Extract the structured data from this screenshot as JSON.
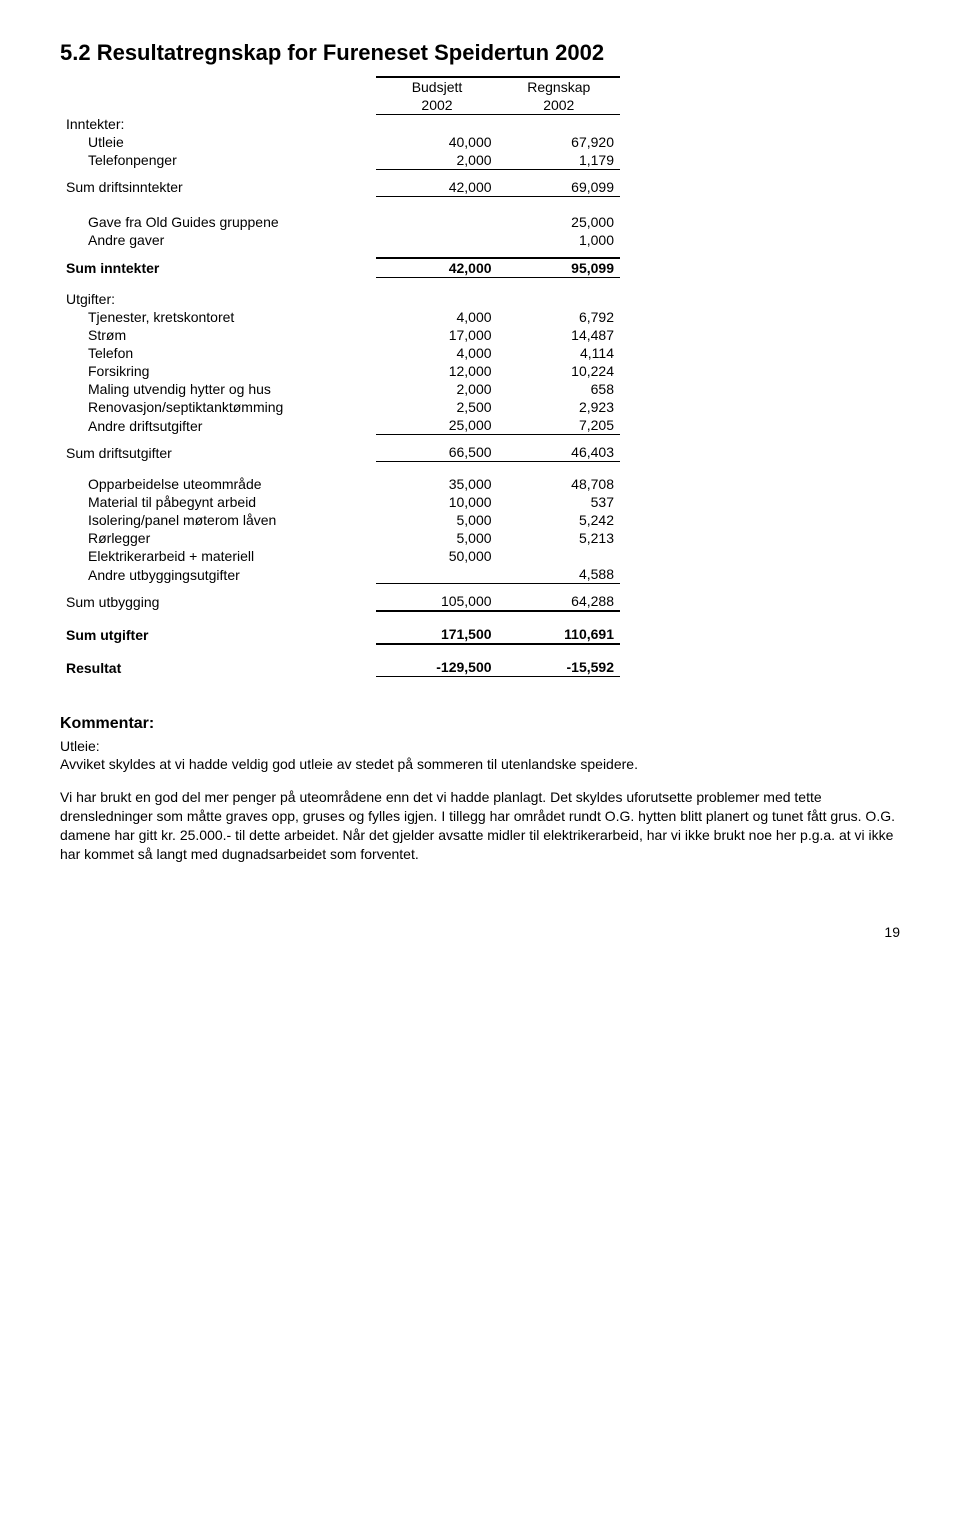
{
  "heading": "5.2  Resultatregnskap for Fureneset Speidertun 2002",
  "headers": {
    "budget": "Budsjett",
    "actual": "Regnskap",
    "year1": "2002",
    "year2": "2002"
  },
  "income": {
    "title": "Inntekter:",
    "rows": [
      {
        "label": "Utleie",
        "b": "40,000",
        "a": "67,920"
      },
      {
        "label": "Telefonpenger",
        "b": "2,000",
        "a": "1,179"
      }
    ],
    "sum": {
      "label": "Sum driftsinntekter",
      "b": "42,000",
      "a": "69,099"
    }
  },
  "extra_income": {
    "rows": [
      {
        "label": "Gave fra Old Guides gruppene",
        "b": "",
        "a": "25,000"
      },
      {
        "label": "Andre gaver",
        "b": "",
        "a": "1,000"
      }
    ],
    "sum": {
      "label": "Sum inntekter",
      "b": "42,000",
      "a": "95,099"
    }
  },
  "expenses": {
    "title": "Utgifter:",
    "rows": [
      {
        "label": "Tjenester, kretskontoret",
        "b": "4,000",
        "a": "6,792"
      },
      {
        "label": "Strøm",
        "b": "17,000",
        "a": "14,487"
      },
      {
        "label": "Telefon",
        "b": "4,000",
        "a": "4,114"
      },
      {
        "label": "Forsikring",
        "b": "12,000",
        "a": "10,224"
      },
      {
        "label": "Maling utvendig hytter og hus",
        "b": "2,000",
        "a": "658"
      },
      {
        "label": "Renovasjon/septiktanktømming",
        "b": "2,500",
        "a": "2,923"
      },
      {
        "label": "Andre driftsutgifter",
        "b": "25,000",
        "a": "7,205"
      }
    ],
    "sum": {
      "label": "Sum driftsutgifter",
      "b": "66,500",
      "a": "46,403"
    }
  },
  "building": {
    "rows": [
      {
        "label": "Opparbeidelse uteommråde",
        "b": "35,000",
        "a": "48,708"
      },
      {
        "label": "Material til påbegynt arbeid",
        "b": "10,000",
        "a": "537"
      },
      {
        "label": "Isolering/panel møterom låven",
        "b": "5,000",
        "a": "5,242"
      },
      {
        "label": "Rørlegger",
        "b": "5,000",
        "a": "5,213"
      },
      {
        "label": "Elektrikerarbeid + materiell",
        "b": "50,000",
        "a": ""
      },
      {
        "label": "Andre utbyggingsutgifter",
        "b": "",
        "a": "4,588"
      }
    ],
    "sum": {
      "label": "Sum utbygging",
      "b": "105,000",
      "a": "64,288"
    }
  },
  "total_expenses": {
    "label": "Sum utgifter",
    "b": "171,500",
    "a": "110,691"
  },
  "result": {
    "label": "Resultat",
    "b": "-129,500",
    "a": "-15,592"
  },
  "comments": {
    "title": "Kommentar:",
    "utleie_label": "Utleie:",
    "p1": "Avviket skyldes at vi hadde veldig god utleie av stedet på sommeren til utenlandske speidere.",
    "p2": "Vi har brukt en god del mer penger på uteområdene enn det vi hadde planlagt. Det skyldes uforutsette problemer med tette drensledninger som måtte graves opp, gruses og fylles igjen. I tillegg har området rundt O.G. hytten blitt planert og tunet fått grus.  O.G. damene har gitt kr. 25.000.- til dette arbeidet. Når det gjelder avsatte midler til elektrikerarbeid, har vi ikke brukt noe her p.g.a. at vi ikke har kommet så langt med dugnadsarbeidet som forventet."
  },
  "page_number": "19"
}
